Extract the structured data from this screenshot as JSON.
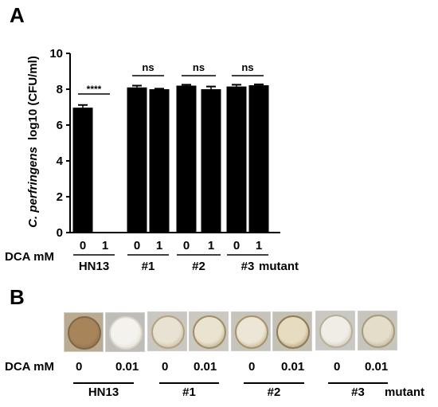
{
  "panel_a_letter": "A",
  "panel_b_letter": "B",
  "chart_data": {
    "type": "bar",
    "ylabel_italic": "C. perfringens",
    "ylabel_rest": "log10 (CFU/ml)",
    "ylim": [
      0,
      10
    ],
    "yticks": [
      0,
      2,
      4,
      6,
      8,
      10
    ],
    "dca_label": "DCA mM",
    "mutant_label": "mutant",
    "categories": [
      "0",
      "1",
      "0",
      "1",
      "0",
      "1",
      "0",
      "1"
    ],
    "groups": [
      {
        "name": "HN13",
        "bars": [
          {
            "dca": "0",
            "value": 6.97,
            "err": 0.15
          },
          {
            "dca": "1",
            "value": 0,
            "err": 0
          }
        ]
      },
      {
        "name": "#1",
        "bars": [
          {
            "dca": "0",
            "value": 8.1,
            "err": 0.1
          },
          {
            "dca": "1",
            "value": 8.0,
            "err": 0.03
          }
        ]
      },
      {
        "name": "#2",
        "bars": [
          {
            "dca": "0",
            "value": 8.2,
            "err": 0.05
          },
          {
            "dca": "1",
            "value": 8.0,
            "err": 0.15
          }
        ]
      },
      {
        "name": "#3",
        "bars": [
          {
            "dca": "0",
            "value": 8.15,
            "err": 0.1
          },
          {
            "dca": "1",
            "value": 8.22,
            "err": 0.05
          }
        ]
      }
    ],
    "significance": [
      "****",
      "ns",
      "ns",
      "ns"
    ],
    "bar_color": "#000000"
  },
  "panel_b": {
    "dca_label": "DCA mM",
    "mutant_label": "mutant",
    "groups": [
      {
        "name": "HN13",
        "conc": [
          "0",
          "0.01"
        ]
      },
      {
        "name": "#1",
        "conc": [
          "0",
          "0.01"
        ]
      },
      {
        "name": "#2",
        "conc": [
          "0",
          "0.01"
        ]
      },
      {
        "name": "#3",
        "conc": [
          "0",
          "0.01"
        ]
      }
    ],
    "photo_colors": [
      {
        "bg": "#b9aa90",
        "dish": "#a8845a",
        "rim": "#7f6748"
      },
      {
        "bg": "#bfbdb8",
        "dish": "#f4f2ec",
        "rim": "#d9d4c8"
      },
      {
        "bg": "#c9c7c0",
        "dish": "#e7e2d2",
        "rim": "#b3a27e"
      },
      {
        "bg": "#cbc8c0",
        "dish": "#e9e3cf",
        "rim": "#a18c63"
      },
      {
        "bg": "#c6c3bb",
        "dish": "#ece6d6",
        "rim": "#a79166"
      },
      {
        "bg": "#c4c0b4",
        "dish": "#e6dcc2",
        "rim": "#8f7a55"
      },
      {
        "bg": "#cac8c3",
        "dish": "#efede6",
        "rim": "#b9ae98"
      },
      {
        "bg": "#c8c5bd",
        "dish": "#e3ddca",
        "rim": "#a89a7c"
      }
    ]
  }
}
